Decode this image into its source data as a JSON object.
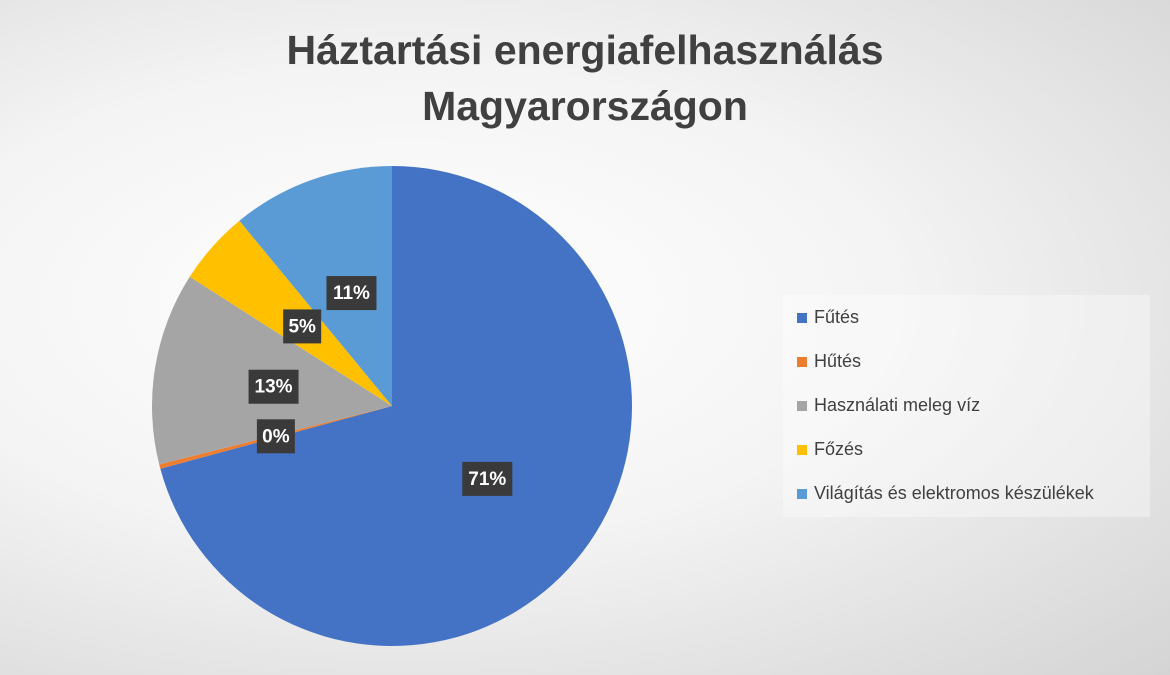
{
  "chart_data": {
    "type": "pie",
    "title": "Háztartási energiafelhasználás Magyarországon",
    "categories": [
      "Fűtés",
      "Hűtés",
      "Használati meleg víz",
      "Főzés",
      "Világítás és elektromos készülékek"
    ],
    "values": [
      71,
      0.3,
      13,
      5,
      11
    ],
    "value_labels": [
      "71%",
      "0%",
      "13%",
      "5%",
      "11%"
    ],
    "colors": [
      "#4472c4",
      "#ed7d31",
      "#a5a5a5",
      "#ffc000",
      "#5b9bd5"
    ],
    "legend": "right"
  }
}
